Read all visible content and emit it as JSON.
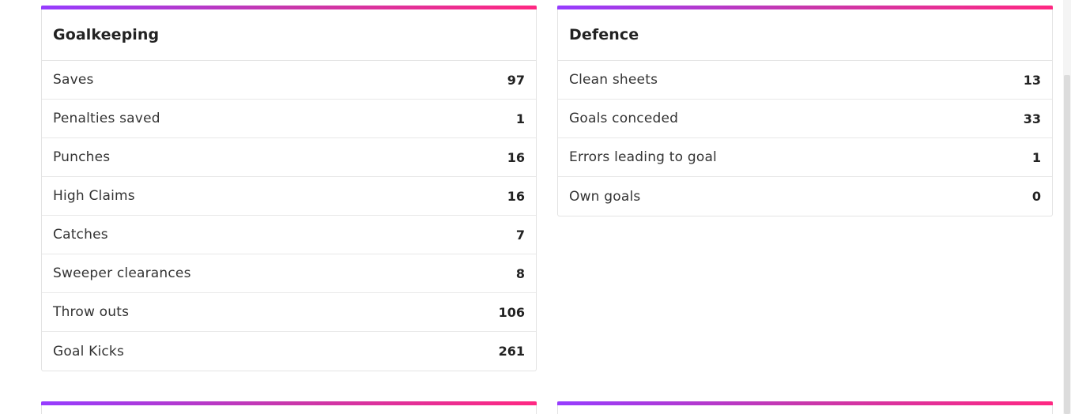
{
  "goalkeeping": {
    "title": "Goalkeeping",
    "rows": [
      {
        "label": "Saves",
        "value": "97"
      },
      {
        "label": "Penalties saved",
        "value": "1"
      },
      {
        "label": "Punches",
        "value": "16"
      },
      {
        "label": "High Claims",
        "value": "16"
      },
      {
        "label": "Catches",
        "value": "7"
      },
      {
        "label": "Sweeper clearances",
        "value": "8"
      },
      {
        "label": "Throw outs",
        "value": "106"
      },
      {
        "label": "Goal Kicks",
        "value": "261"
      }
    ]
  },
  "defence": {
    "title": "Defence",
    "rows": [
      {
        "label": "Clean sheets",
        "value": "13"
      },
      {
        "label": "Goals conceded",
        "value": "33"
      },
      {
        "label": "Errors leading to goal",
        "value": "1"
      },
      {
        "label": "Own goals",
        "value": "0"
      }
    ]
  },
  "colors": {
    "accent_gradient": [
      "#963cff",
      "#c837ab",
      "#ff2882"
    ],
    "border": "#e3e3e3"
  }
}
